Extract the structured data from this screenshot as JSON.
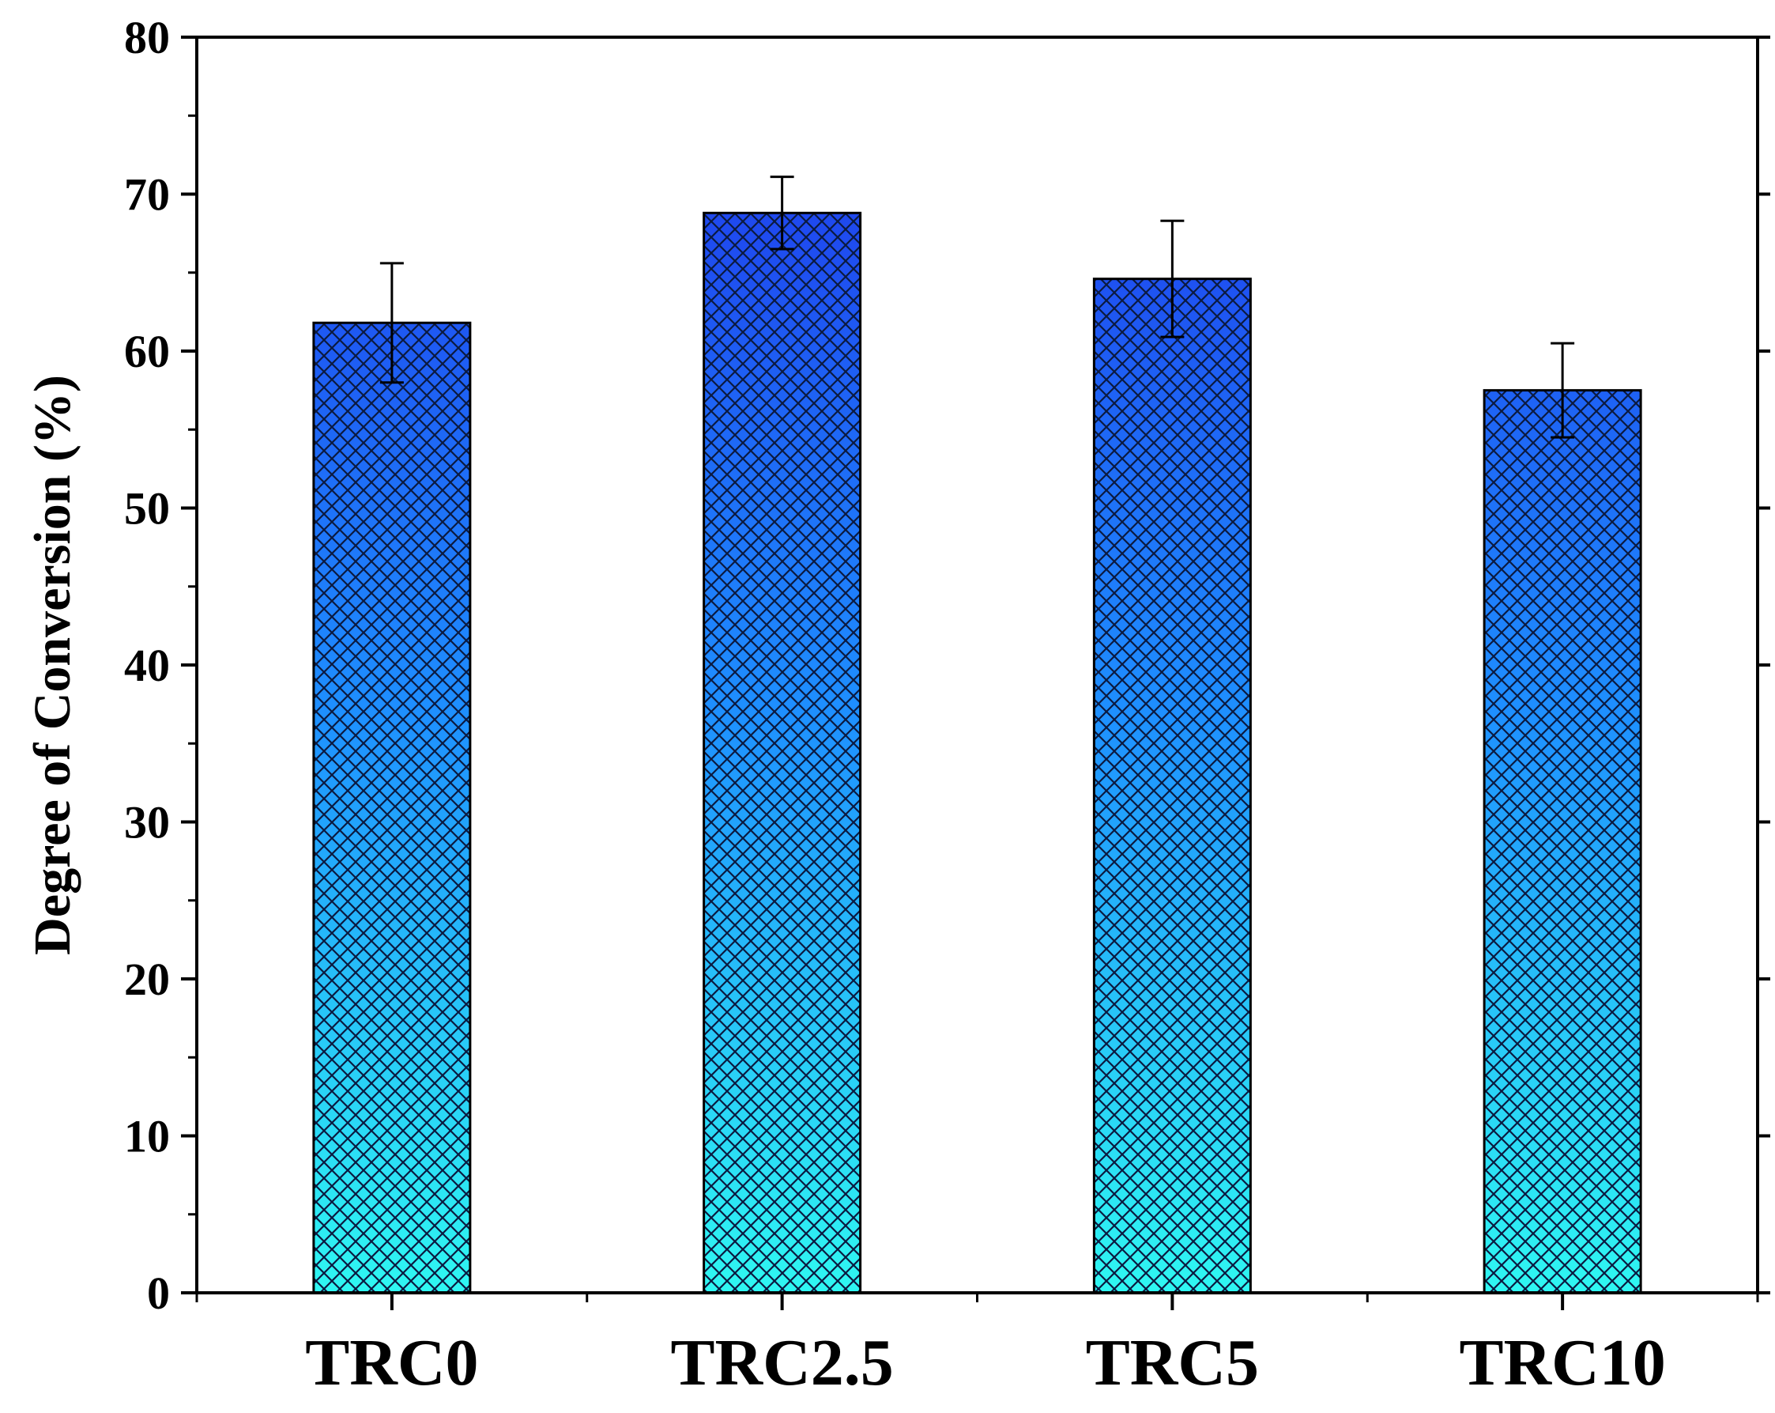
{
  "chart_data": {
    "type": "bar",
    "title": "",
    "xlabel": "",
    "ylabel": "Degree of Conversion (%)",
    "categories": [
      "TRC0",
      "TRC2.5",
      "TRC5",
      "TRC10"
    ],
    "values": [
      61.8,
      68.8,
      64.6,
      57.5
    ],
    "errors": [
      3.8,
      2.3,
      3.7,
      3.0
    ],
    "ylim": [
      0,
      80
    ],
    "yticks": [
      0,
      10,
      20,
      30,
      40,
      50,
      60,
      70,
      80
    ],
    "grid": false,
    "fill": {
      "pattern": "crosshatch",
      "gradient_top": "#1f2ae8",
      "gradient_mid": "#1e8fff",
      "gradient_bottom": "#2ff7f2",
      "hatch_color": "#0b1a40"
    }
  }
}
